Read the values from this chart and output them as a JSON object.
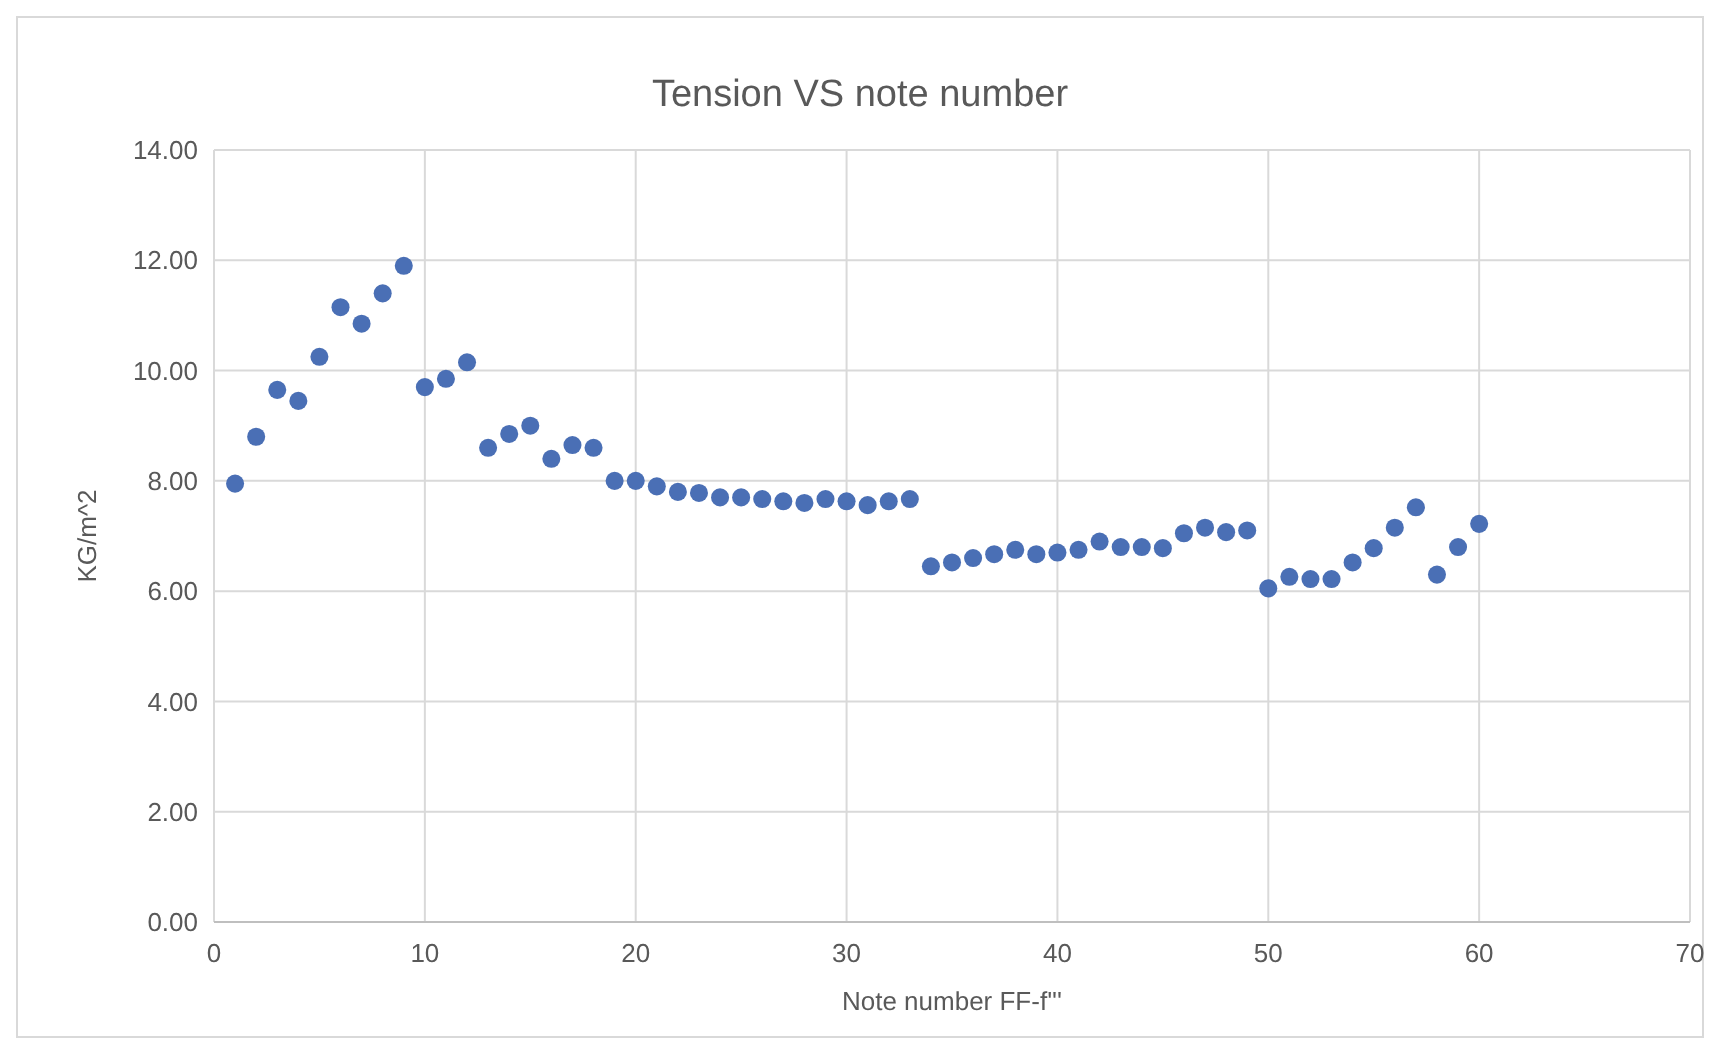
{
  "chart_data": {
    "type": "scatter",
    "title": "Tension VS note number",
    "xlabel": "Note number FF-f'''",
    "ylabel": "KG/m^2",
    "x": [
      1,
      2,
      3,
      4,
      5,
      6,
      7,
      8,
      9,
      10,
      11,
      12,
      13,
      14,
      15,
      16,
      17,
      18,
      19,
      20,
      21,
      22,
      23,
      24,
      25,
      26,
      27,
      28,
      29,
      30,
      31,
      32,
      33,
      34,
      35,
      36,
      37,
      38,
      39,
      40,
      41,
      42,
      43,
      44,
      45,
      46,
      47,
      48,
      49,
      50,
      51,
      52,
      53,
      54,
      55,
      56,
      57,
      58,
      59,
      60
    ],
    "series": [
      {
        "color": "#4a6fb5",
        "values": [
          7.95,
          8.8,
          9.65,
          9.45,
          10.25,
          11.15,
          10.85,
          11.4,
          11.9,
          9.7,
          9.85,
          10.15,
          8.6,
          8.85,
          9.0,
          8.4,
          8.65,
          8.6,
          8.0,
          8.0,
          7.9,
          7.8,
          7.78,
          7.7,
          7.7,
          7.67,
          7.63,
          7.6,
          7.67,
          7.63,
          7.56,
          7.63,
          7.67,
          6.45,
          6.52,
          6.6,
          6.67,
          6.75,
          6.67,
          6.7,
          6.75,
          6.9,
          6.8,
          6.8,
          6.78,
          7.05,
          7.15,
          7.07,
          7.1,
          6.05,
          6.26,
          6.22,
          6.22,
          6.52,
          6.78,
          7.15,
          7.52,
          6.3,
          6.8,
          7.22
        ]
      }
    ],
    "xlim": [
      0,
      70
    ],
    "xticks": [
      0,
      10,
      20,
      30,
      40,
      50,
      60,
      70
    ],
    "ylim": [
      0,
      14
    ],
    "yticks": [
      {
        "value": 0,
        "label": "0.00"
      },
      {
        "value": 2,
        "label": "2.00"
      },
      {
        "value": 4,
        "label": "4.00"
      },
      {
        "value": 6,
        "label": "6.00"
      },
      {
        "value": 8,
        "label": "8.00"
      },
      {
        "value": 10,
        "label": "10.00"
      },
      {
        "value": 12,
        "label": "12.00"
      },
      {
        "value": 14,
        "label": "14.00"
      }
    ],
    "grid": true,
    "marker": "circle"
  }
}
